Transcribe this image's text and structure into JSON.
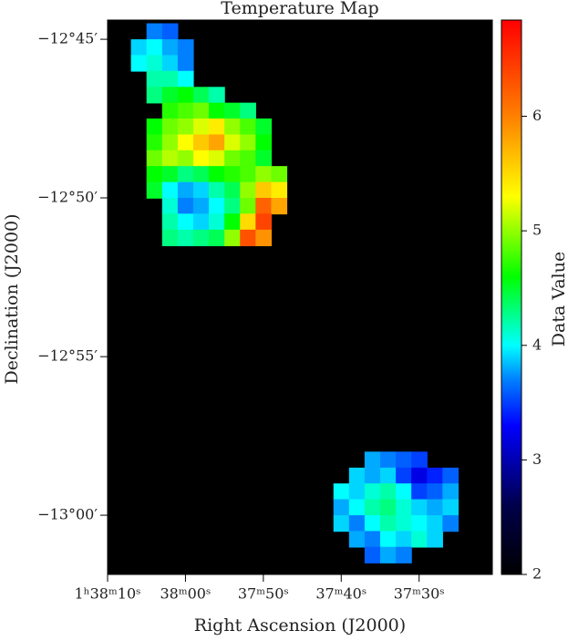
{
  "chart_data": {
    "type": "heatmap",
    "title": "Temperature Map",
    "x_label": "Right Ascension (J2000)",
    "y_label": "Declination (J2000)",
    "colorbar_label": "Data Value",
    "background": "#000000",
    "xlim": [
      70,
      20.6
    ],
    "ylim": [
      -13.0311,
      -12.7399
    ],
    "xticks": [
      {
        "value": 70,
        "label": "1ʰ38ᵐ10ˢ"
      },
      {
        "value": 60,
        "label": "38ᵐ00ˢ"
      },
      {
        "value": 50,
        "label": "37ᵐ50ˢ"
      },
      {
        "value": 40,
        "label": "37ᵐ40ˢ"
      },
      {
        "value": 30,
        "label": "37ᵐ30ˢ"
      }
    ],
    "yticks": [
      {
        "value": -12.75,
        "label": "−12°45′"
      },
      {
        "value": -12.8333,
        "label": "−12°50′"
      },
      {
        "value": -12.9167,
        "label": "−12°55′"
      },
      {
        "value": -13.0,
        "label": "−13°00′"
      }
    ],
    "clim": [
      2,
      6.84
    ],
    "cticks": [
      2,
      3,
      4,
      5,
      6
    ],
    "colorscale": [
      [
        2,
        "#000000"
      ],
      [
        2.6,
        "#00004a"
      ],
      [
        3.3,
        "#0000ff"
      ],
      [
        3.7,
        "#0080ff"
      ],
      [
        4.0,
        "#00ffff"
      ],
      [
        4.6,
        "#00ff00"
      ],
      [
        5.3,
        "#ffff00"
      ],
      [
        6.0,
        "#ff8000"
      ],
      [
        6.84,
        "#ff0000"
      ]
    ],
    "patches": [
      {
        "x": [
          66,
          64,
          62,
          60,
          58,
          56,
          54,
          52,
          50,
          48
        ],
        "y": [
          -12.7458,
          -12.7542,
          -12.7625,
          -12.7708,
          -12.7792,
          -12.7875,
          -12.7958,
          -12.8042,
          -12.8125,
          -12.8208,
          -12.8292,
          -12.8375,
          -12.8458,
          -12.8542
        ],
        "values": [
          [
            null,
            3.7,
            3.6,
            null,
            null,
            null,
            null,
            null,
            null,
            null
          ],
          [
            3.9,
            4.0,
            3.8,
            3.7,
            null,
            null,
            null,
            null,
            null,
            null
          ],
          [
            4.0,
            4.1,
            3.9,
            3.7,
            null,
            null,
            null,
            null,
            null,
            null
          ],
          [
            null,
            4.2,
            4.2,
            4.0,
            null,
            null,
            null,
            null,
            null,
            null
          ],
          [
            null,
            4.3,
            4.5,
            4.6,
            4.4,
            4.2,
            null,
            null,
            null,
            null
          ],
          [
            null,
            null,
            4.7,
            4.8,
            4.9,
            4.6,
            4.5,
            4.3,
            null,
            null
          ],
          [
            null,
            4.6,
            4.9,
            5.0,
            5.2,
            5.4,
            5.0,
            4.8,
            4.5,
            null
          ],
          [
            null,
            4.7,
            5.0,
            5.3,
            5.6,
            5.8,
            5.2,
            5.0,
            4.6,
            null
          ],
          [
            null,
            4.9,
            5.1,
            5.0,
            5.3,
            5.2,
            4.9,
            4.8,
            4.5,
            null
          ],
          [
            null,
            4.6,
            4.5,
            4.3,
            4.4,
            4.6,
            4.7,
            4.8,
            5.0,
            4.9
          ],
          [
            null,
            4.5,
            4.0,
            3.8,
            3.9,
            4.2,
            4.4,
            5.0,
            5.6,
            5.4
          ],
          [
            null,
            null,
            4.1,
            3.7,
            3.8,
            4.0,
            4.3,
            4.9,
            6.2,
            5.8
          ],
          [
            null,
            null,
            4.2,
            4.0,
            3.9,
            4.1,
            4.6,
            5.5,
            6.4,
            null
          ],
          [
            null,
            null,
            4.3,
            4.2,
            4.3,
            4.4,
            5.0,
            6.3,
            5.9,
            null
          ]
        ]
      },
      {
        "x": [
          40,
          38,
          36,
          34,
          32,
          30,
          28,
          26
        ],
        "y": [
          -12.9708,
          -12.9792,
          -12.9875,
          -12.9958,
          -13.0042,
          -13.0125,
          -13.0208
        ],
        "values": [
          [
            null,
            null,
            3.8,
            3.7,
            3.6,
            3.5,
            null,
            null
          ],
          [
            null,
            3.9,
            3.8,
            3.9,
            3.5,
            3.2,
            3.4,
            3.6
          ],
          [
            4.0,
            3.9,
            4.1,
            4.2,
            4.0,
            3.5,
            3.6,
            3.8
          ],
          [
            3.8,
            4.0,
            4.2,
            4.3,
            4.1,
            3.9,
            3.8,
            3.9
          ],
          [
            3.9,
            3.7,
            4.0,
            4.2,
            4.1,
            4.0,
            3.9,
            3.7
          ],
          [
            null,
            3.8,
            3.7,
            4.0,
            3.9,
            4.1,
            3.9,
            null
          ],
          [
            null,
            null,
            3.6,
            3.8,
            3.7,
            null,
            null,
            null
          ]
        ]
      }
    ]
  }
}
